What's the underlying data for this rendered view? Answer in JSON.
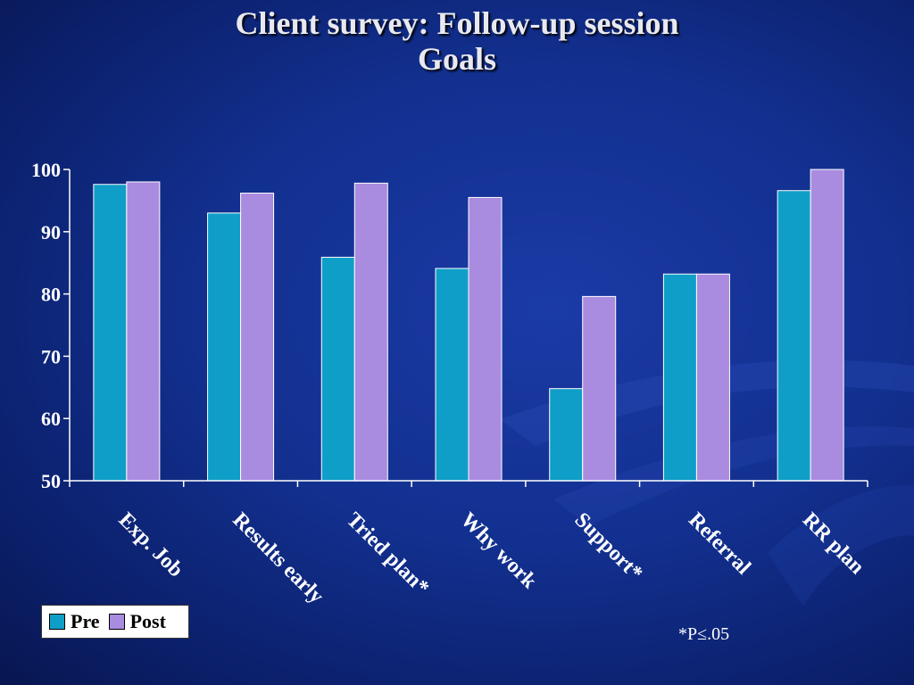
{
  "slide": {
    "title_line1": "Client survey: Follow-up session",
    "title_line2": "Goals",
    "footnote": "*P≤.05"
  },
  "colors": {
    "pre": "#0f9ec8",
    "post": "#a98be0",
    "axis": "#ffffff",
    "label": "#ffffff"
  },
  "chart_data": {
    "type": "bar",
    "title": "Client survey: Follow-up session Goals",
    "categories": [
      "Exp. Job",
      "Results early",
      "Tried plan*",
      "Why work",
      "Support*",
      "Referral",
      "RR plan"
    ],
    "series": [
      {
        "name": "Pre",
        "values": [
          97.6,
          93.0,
          85.9,
          84.1,
          64.8,
          83.2,
          96.6
        ]
      },
      {
        "name": "Post",
        "values": [
          98.0,
          96.2,
          97.8,
          95.5,
          79.6,
          83.2,
          100.0
        ]
      }
    ],
    "ylim": [
      50,
      100
    ],
    "yticks": [
      50,
      60,
      70,
      80,
      90,
      100
    ],
    "legend": "bottom-left",
    "grid": false
  }
}
